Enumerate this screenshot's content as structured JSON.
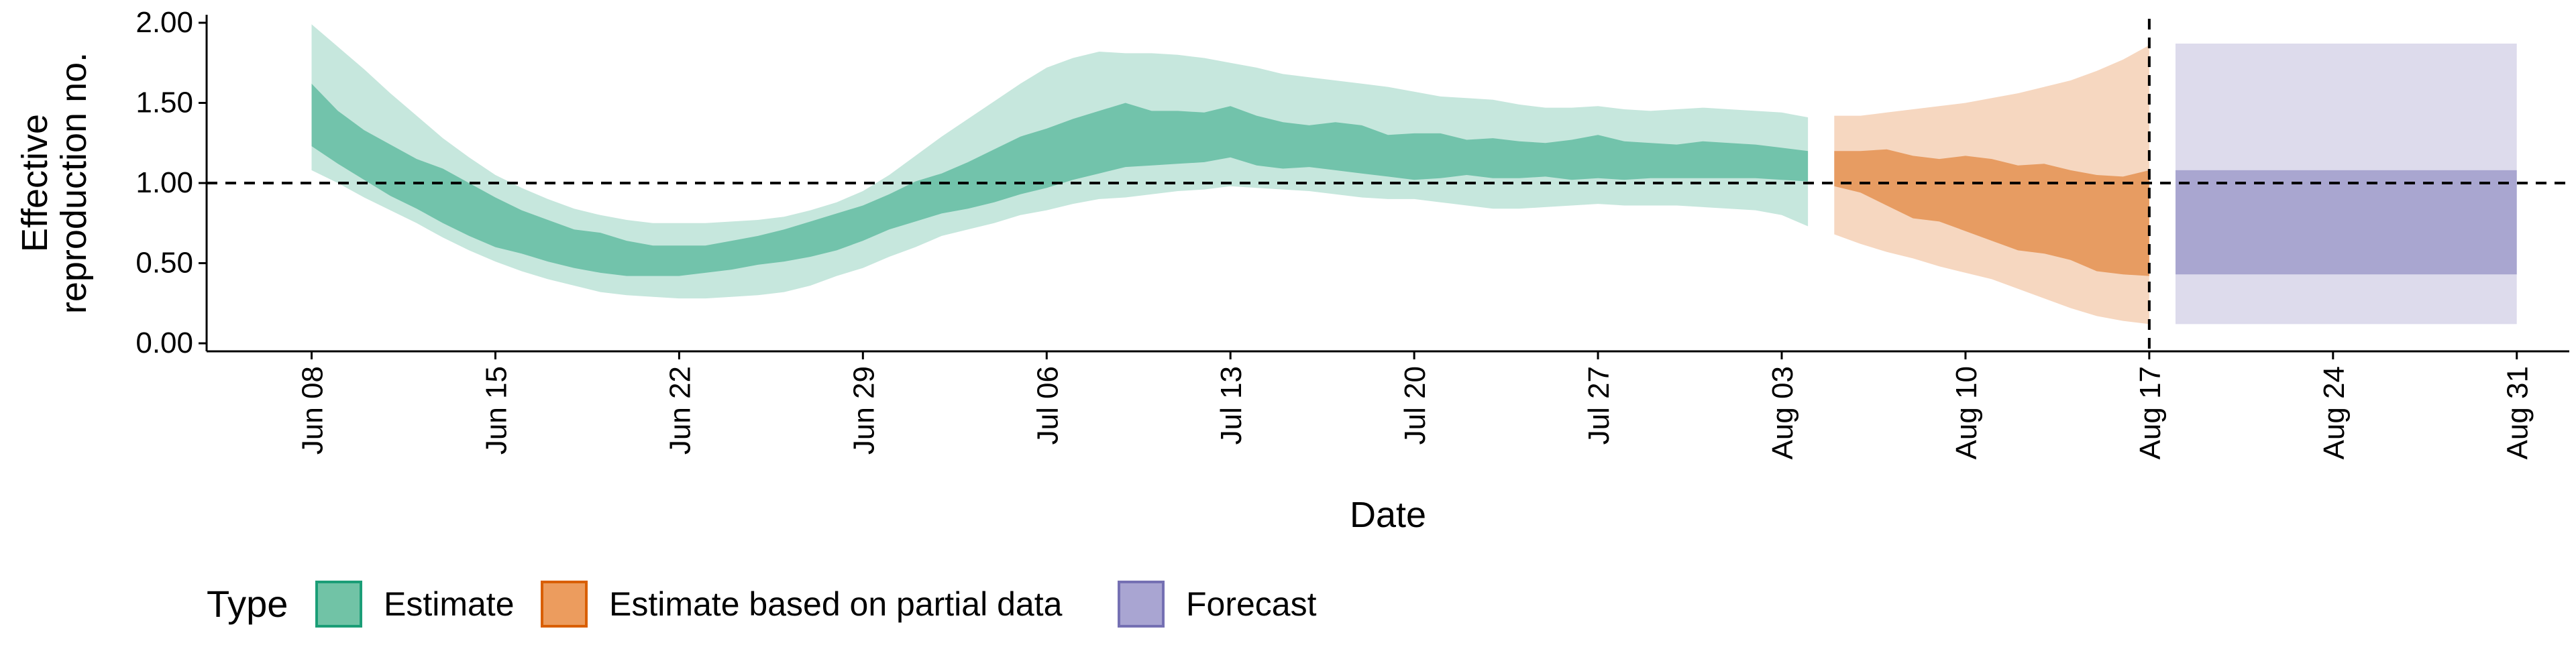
{
  "chart_data": {
    "type": "area",
    "title": "",
    "xlabel": "Date",
    "ylabel_lines": [
      "Effective",
      "reproduction no."
    ],
    "ylim": [
      -0.05,
      2.05
    ],
    "x_domain": [
      "2020-06-04",
      "2020-09-02"
    ],
    "y_ticks": [
      0,
      0.5,
      1.0,
      1.5,
      2.0
    ],
    "y_tick_labels": [
      "0.00",
      "0.50",
      "1.00",
      "1.50",
      "2.00"
    ],
    "x_ticks": [
      "2020-06-08",
      "2020-06-15",
      "2020-06-22",
      "2020-06-29",
      "2020-07-06",
      "2020-07-13",
      "2020-07-20",
      "2020-07-27",
      "2020-08-03",
      "2020-08-10",
      "2020-08-17",
      "2020-08-24",
      "2020-08-31"
    ],
    "x_tick_labels": [
      "Jun 08",
      "Jun 15",
      "Jun 22",
      "Jun 29",
      "Jul 06",
      "Jul 13",
      "Jul 20",
      "Jul 27",
      "Aug 03",
      "Aug 10",
      "Aug 17",
      "Aug 24",
      "Aug 31"
    ],
    "reference_line_y": 1.0,
    "vertical_line_x": "2020-08-17",
    "grid": false,
    "legend": {
      "title": "Type",
      "position": "bottom",
      "items": [
        {
          "label": "Estimate",
          "fill": "#71C3A6",
          "border": "#1B9E77"
        },
        {
          "label": "Estimate based on partial data",
          "fill": "#EC9C5E",
          "border": "#D95F02"
        },
        {
          "label": "Forecast",
          "fill": "#A9A5D2",
          "border": "#7570B3"
        }
      ]
    },
    "series": [
      {
        "name": "Estimate",
        "color": "#1B9E77",
        "dates": [
          "2020-06-08",
          "2020-06-09",
          "2020-06-10",
          "2020-06-11",
          "2020-06-12",
          "2020-06-13",
          "2020-06-14",
          "2020-06-15",
          "2020-06-16",
          "2020-06-17",
          "2020-06-18",
          "2020-06-19",
          "2020-06-20",
          "2020-06-21",
          "2020-06-22",
          "2020-06-23",
          "2020-06-24",
          "2020-06-25",
          "2020-06-26",
          "2020-06-27",
          "2020-06-28",
          "2020-06-29",
          "2020-06-30",
          "2020-07-01",
          "2020-07-02",
          "2020-07-03",
          "2020-07-04",
          "2020-07-05",
          "2020-07-06",
          "2020-07-07",
          "2020-07-08",
          "2020-07-09",
          "2020-07-10",
          "2020-07-11",
          "2020-07-12",
          "2020-07-13",
          "2020-07-14",
          "2020-07-15",
          "2020-07-16",
          "2020-07-17",
          "2020-07-18",
          "2020-07-19",
          "2020-07-20",
          "2020-07-21",
          "2020-07-22",
          "2020-07-23",
          "2020-07-24",
          "2020-07-25",
          "2020-07-26",
          "2020-07-27",
          "2020-07-28",
          "2020-07-29",
          "2020-07-30",
          "2020-07-31",
          "2020-08-01",
          "2020-08-02",
          "2020-08-03",
          "2020-08-04"
        ],
        "outer_lower": [
          1.08,
          1.0,
          0.91,
          0.83,
          0.75,
          0.66,
          0.58,
          0.51,
          0.45,
          0.4,
          0.36,
          0.32,
          0.3,
          0.29,
          0.28,
          0.28,
          0.29,
          0.3,
          0.32,
          0.36,
          0.42,
          0.47,
          0.54,
          0.6,
          0.67,
          0.71,
          0.75,
          0.8,
          0.83,
          0.87,
          0.9,
          0.91,
          0.93,
          0.95,
          0.96,
          0.98,
          0.97,
          0.96,
          0.95,
          0.93,
          0.91,
          0.9,
          0.9,
          0.88,
          0.86,
          0.84,
          0.84,
          0.85,
          0.86,
          0.87,
          0.86,
          0.86,
          0.86,
          0.85,
          0.84,
          0.83,
          0.8,
          0.73
        ],
        "outer_upper": [
          1.99,
          1.85,
          1.71,
          1.56,
          1.42,
          1.28,
          1.16,
          1.05,
          0.97,
          0.9,
          0.84,
          0.8,
          0.77,
          0.75,
          0.75,
          0.75,
          0.76,
          0.77,
          0.79,
          0.83,
          0.88,
          0.95,
          1.05,
          1.17,
          1.29,
          1.4,
          1.51,
          1.62,
          1.72,
          1.78,
          1.82,
          1.81,
          1.81,
          1.8,
          1.78,
          1.75,
          1.72,
          1.68,
          1.66,
          1.64,
          1.62,
          1.6,
          1.57,
          1.54,
          1.53,
          1.52,
          1.49,
          1.47,
          1.47,
          1.48,
          1.46,
          1.45,
          1.46,
          1.47,
          1.46,
          1.45,
          1.44,
          1.41
        ],
        "inner_lower": [
          1.23,
          1.12,
          1.02,
          0.92,
          0.84,
          0.75,
          0.67,
          0.6,
          0.56,
          0.51,
          0.47,
          0.44,
          0.42,
          0.42,
          0.42,
          0.44,
          0.46,
          0.49,
          0.51,
          0.54,
          0.58,
          0.64,
          0.71,
          0.76,
          0.81,
          0.84,
          0.88,
          0.93,
          0.97,
          1.02,
          1.06,
          1.1,
          1.11,
          1.12,
          1.13,
          1.16,
          1.11,
          1.09,
          1.1,
          1.08,
          1.06,
          1.04,
          1.02,
          1.03,
          1.05,
          1.03,
          1.03,
          1.04,
          1.02,
          1.03,
          1.02,
          1.03,
          1.03,
          1.03,
          1.03,
          1.03,
          1.02,
          1.01
        ],
        "inner_upper": [
          1.62,
          1.45,
          1.33,
          1.24,
          1.15,
          1.09,
          1.0,
          0.91,
          0.83,
          0.77,
          0.71,
          0.69,
          0.64,
          0.61,
          0.61,
          0.61,
          0.64,
          0.67,
          0.71,
          0.76,
          0.81,
          0.86,
          0.93,
          1.01,
          1.06,
          1.13,
          1.21,
          1.29,
          1.34,
          1.4,
          1.45,
          1.5,
          1.45,
          1.45,
          1.44,
          1.48,
          1.42,
          1.38,
          1.36,
          1.38,
          1.36,
          1.3,
          1.31,
          1.31,
          1.27,
          1.28,
          1.26,
          1.25,
          1.27,
          1.3,
          1.26,
          1.25,
          1.24,
          1.26,
          1.25,
          1.24,
          1.22,
          1.2
        ]
      },
      {
        "name": "Estimate based on partial data",
        "color": "#D95F02",
        "dates": [
          "2020-08-05",
          "2020-08-06",
          "2020-08-07",
          "2020-08-08",
          "2020-08-09",
          "2020-08-10",
          "2020-08-11",
          "2020-08-12",
          "2020-08-13",
          "2020-08-14",
          "2020-08-15",
          "2020-08-16",
          "2020-08-17"
        ],
        "outer_lower": [
          0.68,
          0.62,
          0.57,
          0.53,
          0.48,
          0.44,
          0.4,
          0.34,
          0.28,
          0.22,
          0.17,
          0.14,
          0.12
        ],
        "outer_upper": [
          1.42,
          1.42,
          1.44,
          1.46,
          1.48,
          1.5,
          1.53,
          1.56,
          1.6,
          1.64,
          1.7,
          1.77,
          1.86
        ],
        "inner_lower": [
          0.98,
          0.94,
          0.86,
          0.78,
          0.76,
          0.7,
          0.64,
          0.58,
          0.56,
          0.52,
          0.45,
          0.43,
          0.42
        ],
        "inner_upper": [
          1.2,
          1.2,
          1.21,
          1.17,
          1.15,
          1.17,
          1.15,
          1.11,
          1.12,
          1.08,
          1.05,
          1.04,
          1.08
        ]
      },
      {
        "name": "Forecast",
        "color": "#7570B3",
        "dates": [
          "2020-08-18",
          "2020-08-31"
        ],
        "outer_lower": [
          0.12,
          0.12
        ],
        "outer_upper": [
          1.87,
          1.87
        ],
        "inner_lower": [
          0.43,
          0.43
        ],
        "inner_upper": [
          1.08,
          1.08
        ]
      }
    ]
  }
}
